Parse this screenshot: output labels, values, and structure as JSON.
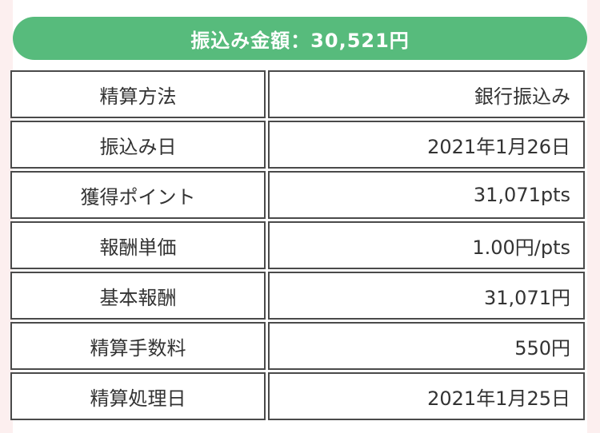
{
  "header": {
    "title": "振込み金額：30,521円"
  },
  "colors": {
    "header_bg": "#57bb7c",
    "page_bg": "#fcefef",
    "border": "#4a4a4a"
  },
  "rows": [
    {
      "label": "精算方法",
      "value": "銀行振込み"
    },
    {
      "label": "振込み日",
      "value": "2021年1月26日"
    },
    {
      "label": "獲得ポイント",
      "value": "31,071pts"
    },
    {
      "label": "報酬単価",
      "value": "1.00円/pts"
    },
    {
      "label": "基本報酬",
      "value": "31,071円"
    },
    {
      "label": "精算手数料",
      "value": "550円"
    },
    {
      "label": "精算処理日",
      "value": "2021年1月25日"
    }
  ]
}
